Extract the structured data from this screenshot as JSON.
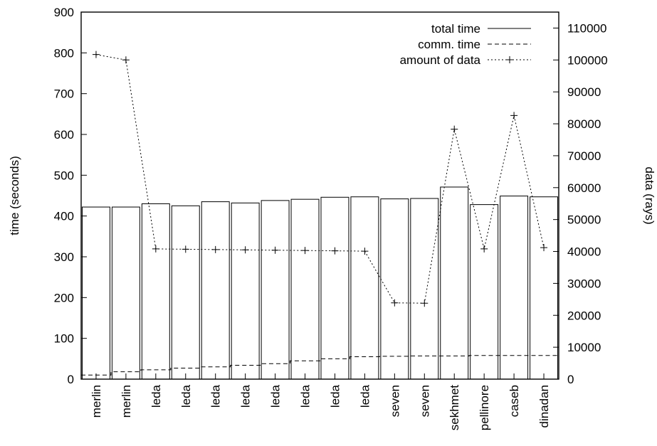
{
  "chart_data": {
    "type": "bar",
    "categories": [
      "merlin",
      "merlin",
      "leda",
      "leda",
      "leda",
      "leda",
      "leda",
      "leda",
      "leda",
      "leda",
      "seven",
      "seven",
      "sekhmet",
      "pellinore",
      "caseb",
      "dinadan"
    ],
    "series": [
      {
        "name": "total time",
        "axis": "left",
        "style": "solid",
        "values": [
          422,
          422,
          430,
          425,
          435,
          432,
          438,
          441,
          446,
          447,
          442,
          443,
          471,
          428,
          449,
          447
        ]
      },
      {
        "name": "comm. time",
        "axis": "left",
        "style": "dashed",
        "values": [
          10,
          18,
          23,
          27,
          30,
          34,
          38,
          45,
          50,
          55,
          56,
          57,
          57,
          58,
          58,
          58
        ]
      },
      {
        "name": "amount of data",
        "axis": "right",
        "style": "dotted-plus",
        "values": [
          101700,
          100000,
          40800,
          40700,
          40600,
          40500,
          40400,
          40300,
          40200,
          40100,
          23900,
          23800,
          78300,
          40800,
          82600,
          41200
        ]
      }
    ],
    "ylabel": "time (seconds)",
    "y2label": "data (rays)",
    "ylim": [
      0,
      900
    ],
    "y2lim": [
      0,
      115000
    ],
    "yticks": [
      0,
      100,
      200,
      300,
      400,
      500,
      600,
      700,
      800,
      900
    ],
    "y2ticks": [
      0,
      10000,
      20000,
      30000,
      40000,
      50000,
      60000,
      70000,
      80000,
      90000,
      100000,
      110000
    ],
    "legend_position": "top-right",
    "grid": false
  },
  "colors": {
    "line": "#000000",
    "background": "#ffffff"
  }
}
